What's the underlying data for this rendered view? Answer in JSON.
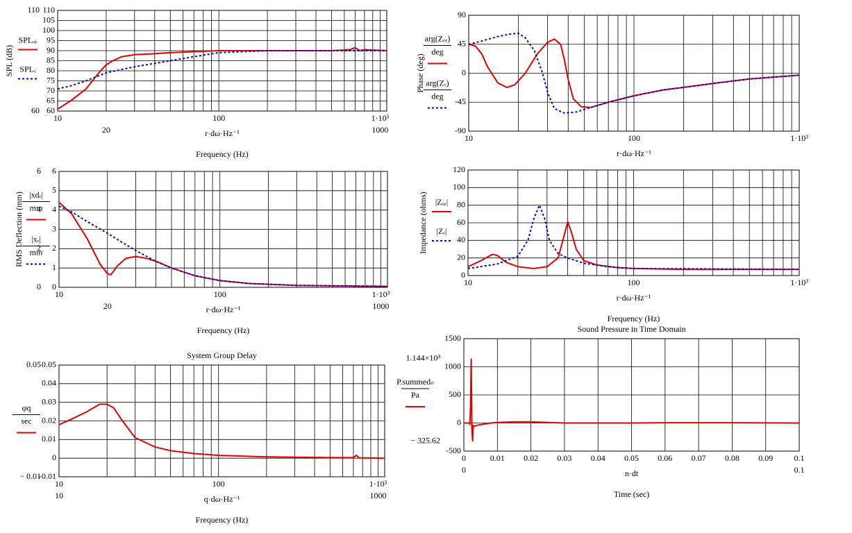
{
  "chart_data": [
    {
      "type": "line",
      "xscale": "log",
      "grid": true,
      "ylabel": "SPL (dB)",
      "xlabel": "r·dω·Hz⁻¹",
      "xtitle": "Frequency (Hz)",
      "xlim": [
        10,
        1100
      ],
      "xticks": [
        10,
        100,
        {
          "value": 1000,
          "label": "1·10³"
        }
      ],
      "xmarkers": [
        20,
        1000
      ],
      "ylim": [
        60,
        110
      ],
      "yticks": [
        60,
        65,
        70,
        75,
        80,
        85,
        90,
        95,
        100,
        105,
        110
      ],
      "ymarkers": [
        110,
        60
      ],
      "series": [
        {
          "name": "SPLₒᵣ",
          "color": "#e00000",
          "dash": false,
          "x": [
            10,
            12,
            15,
            18,
            20,
            22,
            25,
            30,
            40,
            50,
            70,
            100,
            200,
            500,
            650,
            700,
            750,
            800,
            1100
          ],
          "values": [
            61,
            65,
            71,
            79,
            83,
            85,
            87,
            88,
            88.5,
            89,
            89.5,
            90,
            90,
            90,
            90.5,
            91.5,
            90,
            90.5,
            90
          ]
        },
        {
          "name": "SPLᵣ",
          "color": "#0000cc",
          "dash": true,
          "x": [
            10,
            12,
            15,
            20,
            30,
            50,
            70,
            100,
            200,
            500,
            1100
          ],
          "values": [
            71,
            72.5,
            75,
            79,
            82,
            85,
            87,
            89,
            90,
            90,
            90
          ]
        }
      ]
    },
    {
      "type": "line",
      "xscale": "log",
      "grid": true,
      "ylabel": "Phase (deg)",
      "xlabel": "r·dω·Hz⁻¹",
      "xlim": [
        10,
        1000
      ],
      "xticks": [
        10,
        100,
        {
          "value": 1000,
          "label": "1·10³"
        }
      ],
      "xmarkers": [],
      "ylim": [
        -90,
        90
      ],
      "yticks": [
        -90,
        -45,
        0,
        45,
        90
      ],
      "ymarkers": [],
      "series": [
        {
          "name": "arg(Zₒᵣ)",
          "unit": "deg",
          "color": "#e00000",
          "dash": false,
          "x": [
            10,
            11,
            12,
            13,
            15,
            17,
            19,
            22,
            26,
            30,
            33,
            36,
            38,
            40,
            43,
            48,
            55,
            70,
            100,
            150,
            200,
            300,
            500,
            700,
            1000
          ],
          "values": [
            45,
            42,
            30,
            10,
            -15,
            -22,
            -18,
            0,
            30,
            48,
            53,
            45,
            20,
            -10,
            -40,
            -52,
            -53,
            -45,
            -35,
            -26,
            -22,
            -16,
            -9,
            -6,
            -3
          ]
        },
        {
          "name": "arg(Zᵣ)",
          "unit": "deg",
          "color": "#0000cc",
          "dash": true,
          "x": [
            10,
            12,
            15,
            18,
            20,
            22,
            25,
            28,
            30,
            33,
            38,
            45,
            55,
            70,
            100,
            150,
            200,
            300,
            500,
            700,
            1000
          ],
          "values": [
            45,
            50,
            57,
            61,
            62,
            55,
            35,
            0,
            -30,
            -55,
            -62,
            -60,
            -53,
            -45,
            -35,
            -26,
            -22,
            -16,
            -9,
            -6,
            -3
          ]
        }
      ]
    },
    {
      "type": "line",
      "xscale": "log",
      "grid": true,
      "ylabel": "RMS Deflection (mm)",
      "xlabel": "r·dω·Hz⁻¹",
      "xtitle": "Frequency (Hz)",
      "xlim": [
        10,
        1100
      ],
      "xticks": [
        10,
        100,
        {
          "value": 1000,
          "label": "1·10³"
        }
      ],
      "xmarkers": [
        20,
        1000
      ],
      "ylim": [
        0,
        6
      ],
      "yticks": [
        0,
        1,
        2,
        3,
        4,
        5,
        6
      ],
      "ymarkers": [
        6,
        4,
        2,
        0
      ],
      "series": [
        {
          "name": "|xdᵣ|",
          "unit": "mm",
          "color": "#e00000",
          "dash": false,
          "x": [
            10,
            12,
            15,
            18,
            20,
            21,
            23,
            26,
            30,
            35,
            40,
            50,
            70,
            100,
            150,
            300,
            1100
          ],
          "values": [
            4.4,
            3.8,
            2.5,
            1.2,
            0.7,
            0.65,
            1.1,
            1.5,
            1.6,
            1.5,
            1.35,
            1,
            0.6,
            0.35,
            0.2,
            0.1,
            0.05
          ]
        },
        {
          "name": "|xᵣ|",
          "unit": "mm",
          "color": "#0000cc",
          "dash": true,
          "x": [
            10,
            12,
            15,
            20,
            25,
            30,
            40,
            50,
            70,
            100,
            150,
            300,
            1100
          ],
          "values": [
            4.2,
            3.9,
            3.4,
            2.8,
            2.3,
            1.9,
            1.35,
            1,
            0.6,
            0.35,
            0.2,
            0.1,
            0.05
          ]
        }
      ]
    },
    {
      "type": "line",
      "xscale": "log",
      "grid": true,
      "ylabel": "Impedance (ohms)",
      "xlabel": "r·dω·Hz⁻¹",
      "xtitle": "Frequency (Hz)",
      "xlim": [
        10,
        1000
      ],
      "xticks": [
        10,
        100,
        {
          "value": 1000,
          "label": "1·10³"
        }
      ],
      "xmarkers": [],
      "ylim": [
        0,
        120
      ],
      "yticks": [
        0,
        20,
        40,
        60,
        80,
        100,
        120
      ],
      "ymarkers": [],
      "series": [
        {
          "name": "|Zₒᵣ|",
          "color": "#e00000",
          "dash": false,
          "x": [
            10,
            12,
            14,
            15,
            17,
            20,
            25,
            30,
            35,
            38,
            40,
            42,
            45,
            50,
            60,
            80,
            100,
            200,
            1000
          ],
          "values": [
            10,
            17,
            24,
            23,
            15,
            10,
            8,
            10,
            20,
            45,
            61,
            50,
            30,
            17,
            12,
            9,
            8,
            7,
            7
          ]
        },
        {
          "name": "|Zᵣ|",
          "color": "#0000cc",
          "dash": true,
          "x": [
            10,
            15,
            20,
            23,
            25,
            27,
            29,
            31,
            35,
            40,
            50,
            70,
            100,
            1000
          ],
          "values": [
            8,
            13,
            22,
            40,
            65,
            80,
            65,
            40,
            25,
            20,
            14,
            10,
            8,
            7
          ]
        }
      ]
    },
    {
      "type": "line",
      "xscale": "log",
      "grid": true,
      "title": "System Group Delay",
      "xlabel": "q·dω·Hz⁻¹",
      "xtitle": "Frequency (Hz)",
      "xlim": [
        10,
        1100
      ],
      "xticks": [
        10,
        100,
        {
          "value": 1000,
          "label": "1·10³"
        }
      ],
      "xmarkers": [
        10,
        1000
      ],
      "ylim": [
        -0.01,
        0.05
      ],
      "yticks": [
        -0.01,
        0,
        0.01,
        0.02,
        0.03,
        0.04,
        0.05
      ],
      "ymarkers": [
        0.05,
        {
          "value": -0.01,
          "label": "− 0.01"
        }
      ],
      "series": [
        {
          "name": "φq",
          "unit": "sec",
          "color": "#e00000",
          "dash": false,
          "x": [
            10,
            12,
            15,
            18,
            20,
            22,
            25,
            30,
            40,
            50,
            70,
            100,
            200,
            500,
            700,
            730,
            760,
            1100
          ],
          "values": [
            0.018,
            0.021,
            0.025,
            0.029,
            0.029,
            0.027,
            0.02,
            0.011,
            0.006,
            0.004,
            0.0025,
            0.0015,
            0.0007,
            0.0003,
            0.0003,
            0.0015,
            0.0002,
            0
          ]
        }
      ]
    },
    {
      "type": "line",
      "xscale": "linear",
      "grid": true,
      "title": "Sound Pressure in Time Domain",
      "xlabel": "n·dt",
      "xtitle": "Time (sec)",
      "xlim": [
        0,
        0.1
      ],
      "xticks": [
        0,
        0.01,
        0.02,
        0.03,
        0.04,
        0.05,
        0.06,
        0.07,
        0.08,
        0.09,
        0.1
      ],
      "xmarkers": [
        0,
        0.1
      ],
      "ylim": [
        -500,
        1500
      ],
      "yticks": [
        -500,
        0,
        500,
        1000,
        1500
      ],
      "ymarkers": [
        {
          "value": 1144,
          "label": "1.144×10³"
        },
        {
          "value": -325.62,
          "label": "− 325.62"
        }
      ],
      "series": [
        {
          "name": "P.summedₙ",
          "unit": "Pa",
          "color": "#e00000",
          "dash": false,
          "x": [
            0,
            0.0015,
            0.0018,
            0.002,
            0.0022,
            0.0024,
            0.0026,
            0.0028,
            0.003,
            0.004,
            0.006,
            0.008,
            0.01,
            0.015,
            0.02,
            0.03,
            0.05,
            0.06,
            0.08,
            0.1
          ],
          "values": [
            0,
            0,
            -20,
            300,
            1144,
            -100,
            -325.62,
            -50,
            -60,
            -40,
            -20,
            0,
            10,
            20,
            20,
            0,
            0,
            5,
            5,
            0
          ]
        }
      ]
    }
  ]
}
